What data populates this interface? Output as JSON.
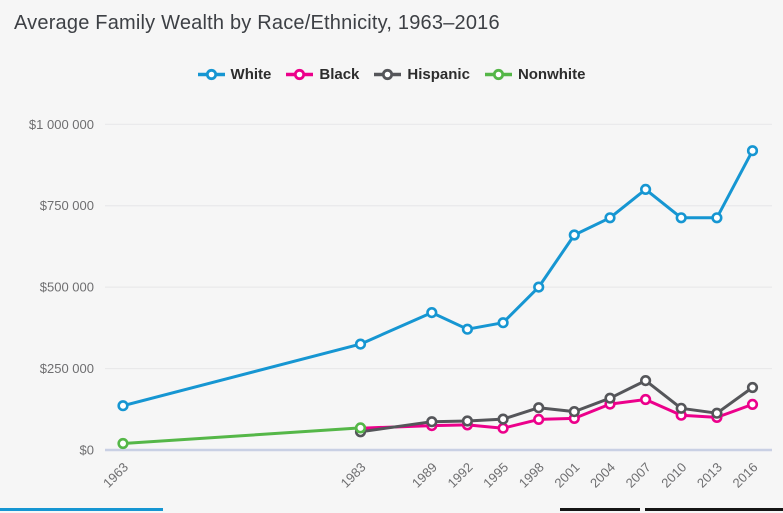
{
  "title": "Average Family Wealth by Race/Ethnicity, 1963–2016",
  "colors": {
    "background": "#f6f6f6",
    "title_text": "#3d4045",
    "axis_label": "#6e6e70",
    "gridline": "#e9e9ea",
    "zero_axis": "#c9d0e4",
    "legend_text": "#2d2d2d",
    "footer_blue_bar": "#1696d2",
    "footer_dark_bar": "#151515"
  },
  "legend": {
    "items": [
      {
        "label": "White",
        "color": "#1696d2"
      },
      {
        "label": "Black",
        "color": "#ec008b"
      },
      {
        "label": "Hispanic",
        "color": "#55565a"
      },
      {
        "label": "Nonwhite",
        "color": "#55b748"
      }
    ]
  },
  "chart_data": {
    "type": "line",
    "title": "Average Family Wealth by Race/Ethnicity, 1963–2016",
    "x": [
      1963,
      1983,
      1989,
      1992,
      1995,
      1998,
      2001,
      2004,
      2007,
      2010,
      2013,
      2016
    ],
    "xlim": [
      1963,
      2016
    ],
    "ylim": [
      0,
      1050000
    ],
    "grid": true,
    "legend_position": "top",
    "xlabel": "",
    "ylabel": "",
    "y_ticks": [
      {
        "value": 0,
        "label": "$0"
      },
      {
        "value": 250000,
        "label": "$250 000"
      },
      {
        "value": 500000,
        "label": "$500 000"
      },
      {
        "value": 750000,
        "label": "$750 000"
      },
      {
        "value": 1000000,
        "label": "$1 000 000"
      }
    ],
    "series": [
      {
        "name": "White",
        "color": "#1696d2",
        "values": [
          136000,
          325000,
          422000,
          371000,
          391000,
          500000,
          660000,
          713000,
          800000,
          713000,
          713000,
          919000
        ]
      },
      {
        "name": "Black",
        "color": "#ec008b",
        "values": [
          null,
          67000,
          75000,
          77000,
          67000,
          94000,
          97000,
          141000,
          155000,
          107000,
          100000,
          140000
        ]
      },
      {
        "name": "Hispanic",
        "color": "#55565a",
        "values": [
          null,
          56000,
          87000,
          89000,
          95000,
          130000,
          118000,
          159000,
          213000,
          128000,
          113000,
          192000
        ]
      },
      {
        "name": "Nonwhite",
        "color": "#55b748",
        "values": [
          20000,
          68000,
          null,
          null,
          null,
          null,
          null,
          null,
          null,
          null,
          null,
          null
        ]
      }
    ]
  },
  "footer_fragments": {
    "blue_bar": "progress-indicator",
    "dark_bar_left": "button-fragment",
    "dark_bar_right": "button-fragment"
  }
}
